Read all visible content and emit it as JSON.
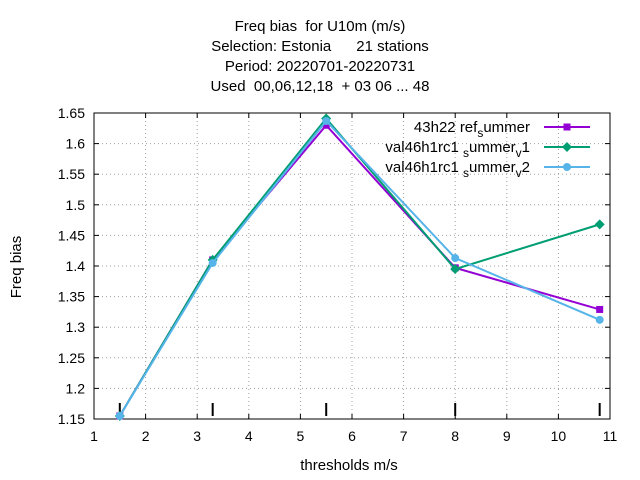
{
  "chart_data": {
    "type": "line",
    "title_lines": [
      "Freq bias  for U10m (m/s)",
      "Selection: Estonia      21 stations",
      "Period: 20220701-20220731",
      "Used  00,06,12,18  + 03 06 ... 48"
    ],
    "xlabel": "thresholds m/s",
    "ylabel": "Freq bias",
    "xlim": [
      1,
      11
    ],
    "ylim": [
      1.15,
      1.65
    ],
    "xticks": [
      1,
      2,
      3,
      4,
      5,
      6,
      7,
      8,
      9,
      10,
      11
    ],
    "yticks": [
      1.15,
      1.2,
      1.25,
      1.3,
      1.35,
      1.4,
      1.45,
      1.5,
      1.55,
      1.6,
      1.65
    ],
    "threshold_marks": [
      1.5,
      3.3,
      5.5,
      8,
      10.8
    ],
    "grid": true,
    "legend_position": "top-right",
    "series": [
      {
        "legend": {
          "main": "43h22",
          "parts": [
            {
              "t": "ref",
              "sub": false
            },
            {
              "t": "s",
              "sub": true
            },
            {
              "t": "ummer",
              "sub": false
            }
          ]
        },
        "color": "#9400d3",
        "marker": "square",
        "x": [
          1.5,
          3.3,
          5.5,
          8,
          10.8
        ],
        "values": [
          1.155,
          1.41,
          1.63,
          1.397,
          1.329
        ]
      },
      {
        "legend": {
          "main": "val46h1rc1",
          "parts": [
            {
              "t": "s",
              "sub": true
            },
            {
              "t": "ummer",
              "sub": false
            },
            {
              "t": "v",
              "sub": true
            },
            {
              "t": "1",
              "sub": false
            }
          ]
        },
        "color": "#009e73",
        "marker": "diamond",
        "x": [
          1.5,
          3.3,
          5.5,
          8,
          10.8
        ],
        "values": [
          1.155,
          1.41,
          1.641,
          1.395,
          1.468
        ]
      },
      {
        "legend": {
          "main": "val46h1rc1",
          "parts": [
            {
              "t": "s",
              "sub": true
            },
            {
              "t": "ummer",
              "sub": false
            },
            {
              "t": "v",
              "sub": true
            },
            {
              "t": "2",
              "sub": false
            }
          ]
        },
        "color": "#56b4e9",
        "marker": "circle",
        "x": [
          1.5,
          3.3,
          5.5,
          8,
          10.8
        ],
        "values": [
          1.155,
          1.405,
          1.637,
          1.413,
          1.312
        ]
      }
    ]
  }
}
